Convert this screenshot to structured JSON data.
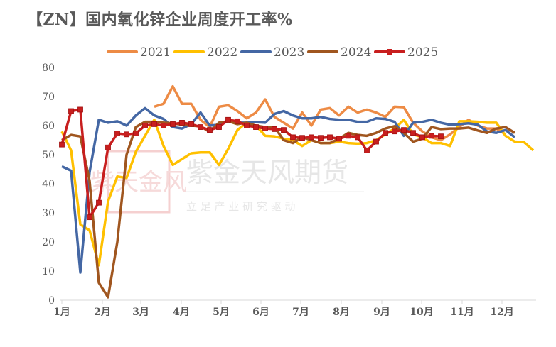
{
  "title": "【ZN】国内氧化锌企业周度开工率%",
  "watermark": {
    "brand": "紫金天风期货",
    "slogan": "立 足 产 业   研 究 驱 动",
    "seal": "紫天金风"
  },
  "chart_data": {
    "type": "line",
    "title": "【ZN】国内氧化锌企业周度开工率%",
    "xlabel": "",
    "ylabel": "",
    "x_tick_labels": [
      "1月",
      "2月",
      "3月",
      "4月",
      "5月",
      "6月",
      "7月",
      "8月",
      "9月",
      "10月",
      "11月",
      "12月"
    ],
    "y_ticks": [
      0,
      10,
      20,
      30,
      40,
      50,
      60,
      70,
      80
    ],
    "ylim": [
      0,
      80
    ],
    "x_unit": "week of year",
    "grid": false,
    "legend": "top",
    "series": [
      {
        "name": "2021",
        "color": "#ED8B45",
        "marker": "none",
        "values": [
          null,
          null,
          null,
          null,
          null,
          null,
          null,
          null,
          null,
          null,
          66.5,
          67.5,
          73.5,
          67.5,
          67.5,
          62,
          59.5,
          66.5,
          67,
          65,
          62.5,
          64.5,
          69,
          63,
          61,
          59,
          64.5,
          60,
          65.5,
          66,
          63.5,
          66.5,
          64.5,
          65.5,
          64.5,
          63,
          66.5,
          66.3,
          61,
          58,
          56,
          55,
          57,
          59.5,
          62,
          60,
          59,
          59,
          57
        ]
      },
      {
        "name": "2022",
        "color": "#FFC000",
        "marker": "none",
        "values": [
          58,
          51.5,
          26,
          24,
          12,
          34,
          42.5,
          42,
          51,
          56.5,
          62,
          53,
          46.5,
          48.5,
          50.5,
          50.8,
          50.8,
          46.5,
          52,
          58.5,
          61,
          60,
          56.5,
          56.3,
          55.5,
          55,
          53,
          55,
          54,
          54,
          54.5,
          54,
          53.8,
          54,
          55,
          57,
          59,
          62,
          57,
          56,
          54,
          54,
          53,
          61.5,
          61.5,
          61.3,
          61,
          61,
          56.5,
          54.5,
          54.3,
          51.5
        ]
      },
      {
        "name": "2023",
        "color": "#4467A4",
        "marker": "none",
        "values": [
          46,
          44.5,
          9.5,
          44,
          62,
          61,
          61.5,
          60,
          63.5,
          66,
          63.5,
          62.3,
          59.5,
          59,
          60.5,
          64.5,
          60,
          60.3,
          61.5,
          61,
          61,
          61.2,
          61,
          64,
          65,
          63.5,
          62.5,
          62.5,
          63,
          62.3,
          62,
          62,
          61.3,
          61.3,
          62.5,
          62.3,
          61.3,
          56.5,
          61,
          61.3,
          62,
          61,
          60.3,
          60.5,
          60.8,
          60.3,
          58,
          57.5,
          58.5,
          56
        ]
      },
      {
        "name": "2024",
        "color": "#A0561F",
        "marker": "none",
        "values": [
          55,
          56.8,
          56.3,
          41,
          6,
          1,
          20,
          50,
          59.5,
          61.3,
          61.3,
          61,
          60.8,
          60.3,
          60,
          59.8,
          57.8,
          61,
          61.5,
          60.5,
          61,
          60,
          59.5,
          59.5,
          55,
          54,
          56,
          55,
          54,
          54,
          55.5,
          57.5,
          56.8,
          56.5,
          57.5,
          59,
          59.8,
          57.5,
          54.5,
          55.5,
          59.5,
          58.8,
          59,
          59,
          59.3,
          58.3,
          57.5,
          59,
          59.5,
          57.5
        ]
      },
      {
        "name": "2025",
        "color": "#C81E1E",
        "marker": "square",
        "values": [
          53.5,
          65,
          65.5,
          28.5,
          33.5,
          52.5,
          57.3,
          57,
          57.3,
          60,
          60.5,
          60,
          60.5,
          61,
          60.5,
          59.5,
          58.5,
          59.5,
          62,
          61.5,
          60,
          59.5,
          59,
          58.8,
          58.5,
          56,
          55.8,
          56,
          55.8,
          56,
          55.5,
          56.5,
          56,
          51.5,
          54.5,
          57.5,
          58,
          58.5,
          57.5,
          56,
          56.5,
          56.3
        ]
      }
    ]
  }
}
